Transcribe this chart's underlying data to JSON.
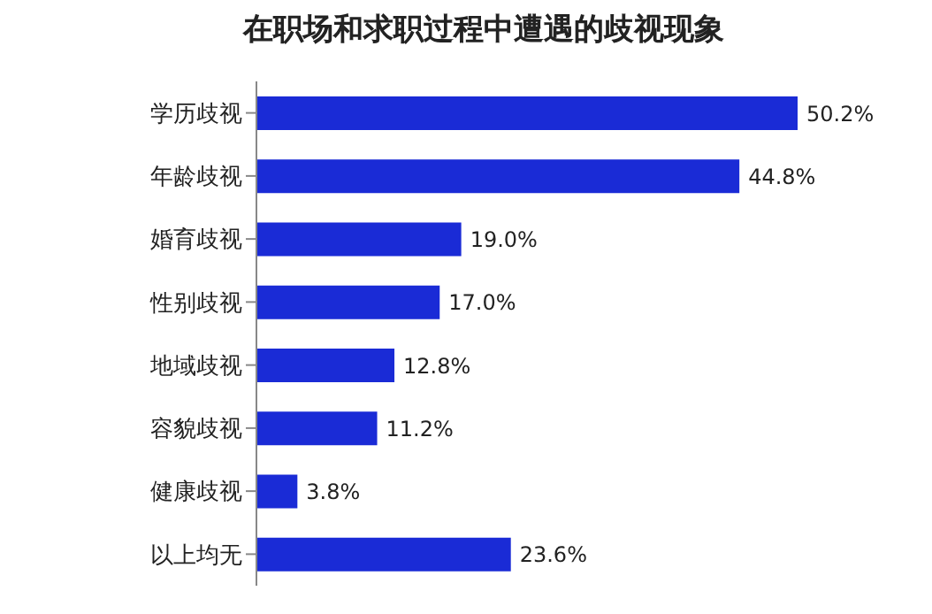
{
  "chart_data": {
    "type": "bar",
    "orientation": "horizontal",
    "title": "在职场和求职过程中遭遇的歧视现象",
    "categories": [
      "学历歧视",
      "年龄歧视",
      "婚育歧视",
      "性别歧视",
      "地域歧视",
      "容貌歧视",
      "健康歧视",
      "以上均无"
    ],
    "values": [
      50.2,
      44.8,
      19.0,
      17.0,
      12.8,
      11.2,
      3.8,
      23.6
    ],
    "value_labels": [
      "50.2%",
      "44.8%",
      "19.0%",
      "17.0%",
      "12.8%",
      "11.2%",
      "3.8%",
      "23.6%"
    ],
    "color": "#1a2bd6",
    "tick_labels": "y"
  }
}
